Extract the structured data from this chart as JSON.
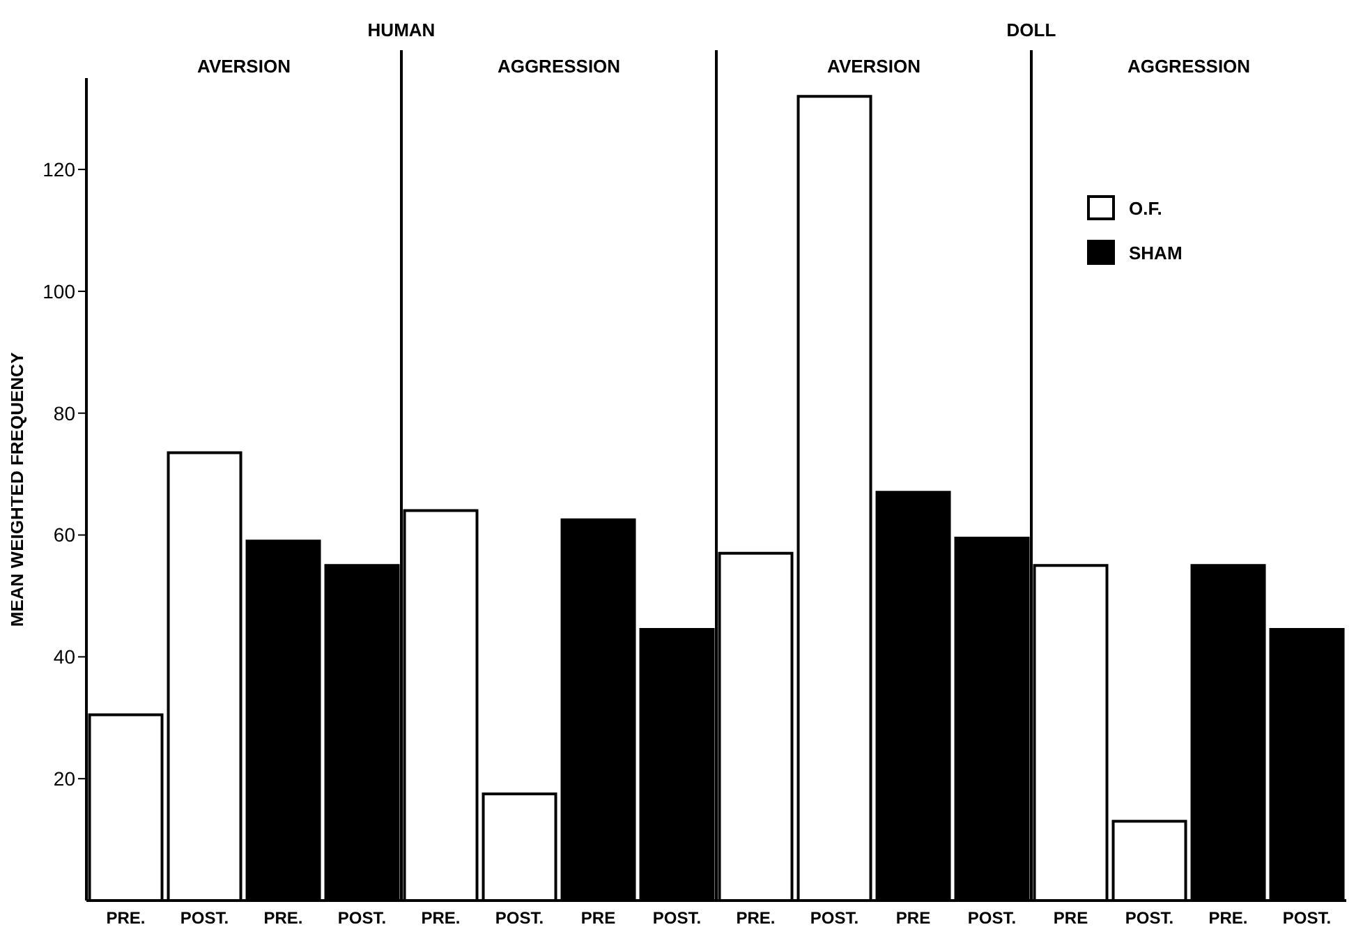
{
  "chart_data": {
    "type": "bar",
    "ylabel": "MEAN WEIGHTED FREQUENCY",
    "annotations": [
      "HUMAN",
      "DOLL",
      "AVERSION",
      "AGGRESSION",
      "AVERSION",
      "AGGRESSION"
    ],
    "categories": [
      "PRE.",
      "POST.",
      "PRE.",
      "POST.",
      "PRE.",
      "POST.",
      "PRE",
      "POST.",
      "PRE.",
      "POST.",
      "PRE",
      "POST.",
      "PRE",
      "POST.",
      "PRE.",
      "POST."
    ],
    "stacked": true,
    "series": [
      {
        "name": "O.F.",
        "color": "#ffffff",
        "values": [
          30.5,
          73.5,
          null,
          null,
          64,
          17.5,
          null,
          null,
          57,
          132,
          null,
          null,
          55,
          13,
          null,
          null
        ]
      },
      {
        "name": "SHAM",
        "color": "#000000",
        "values": [
          null,
          null,
          59,
          55,
          null,
          null,
          62.5,
          44.5,
          null,
          null,
          67,
          59.5,
          null,
          null,
          55,
          44.5
        ]
      }
    ],
    "ylim": [
      0,
      135
    ],
    "yticks": [
      20,
      40,
      60,
      80,
      100,
      120
    ],
    "legend": "top right",
    "grid": false
  }
}
